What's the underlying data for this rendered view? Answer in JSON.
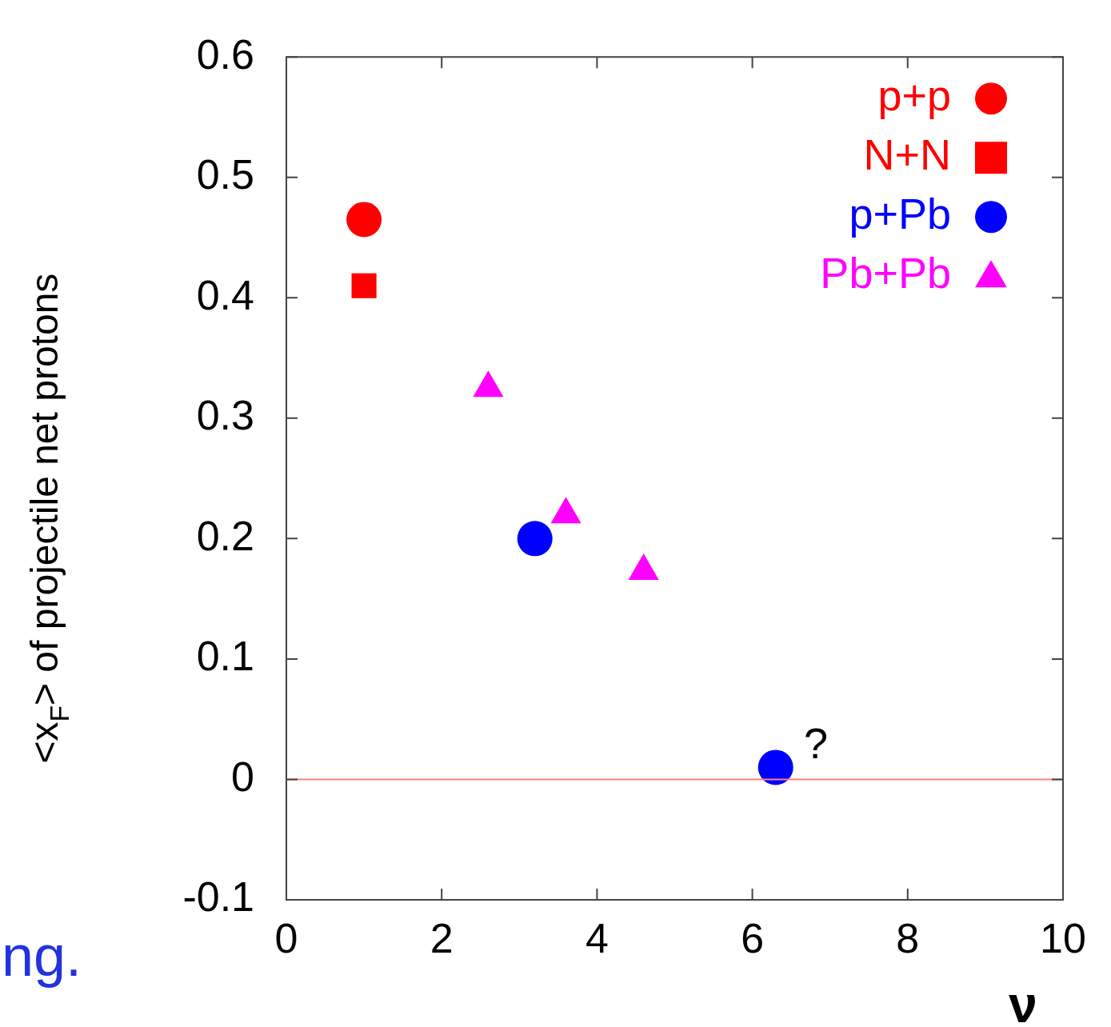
{
  "chart_data": {
    "type": "scatter",
    "xlabel": "ν",
    "ylabel": "<x$_{F}$> of projectile net protons",
    "xlim": [
      0,
      10
    ],
    "xticks": [
      0,
      2,
      4,
      6,
      8,
      10
    ],
    "ylim": [
      -0.1,
      0.6
    ],
    "yticks": [
      -0.1,
      0,
      0.1,
      0.2,
      0.3,
      0.4,
      0.5,
      0.6
    ],
    "legend": "top right",
    "series": [
      {
        "name": "p+p",
        "color": "#ff0000",
        "marker": "circle",
        "x": [
          1.0
        ],
        "values": [
          0.465
        ]
      },
      {
        "name": "N+N",
        "color": "#ff0000",
        "marker": "square",
        "x": [
          1.0
        ],
        "values": [
          0.41
        ]
      },
      {
        "name": "p+Pb",
        "color": "#0000ff",
        "marker": "circle",
        "x": [
          3.2,
          6.3
        ],
        "values": [
          0.2,
          0.01
        ]
      },
      {
        "name": "Pb+Pb",
        "color": "#ff00ff",
        "marker": "triangle",
        "x": [
          2.6,
          3.6,
          4.6
        ],
        "values": [
          0.325,
          0.22,
          0.173
        ]
      }
    ],
    "ref_lines": [
      {
        "axis": "y",
        "value": 0,
        "color": "#ff8080"
      }
    ],
    "annotations": [
      "?",
      "ng."
    ]
  }
}
